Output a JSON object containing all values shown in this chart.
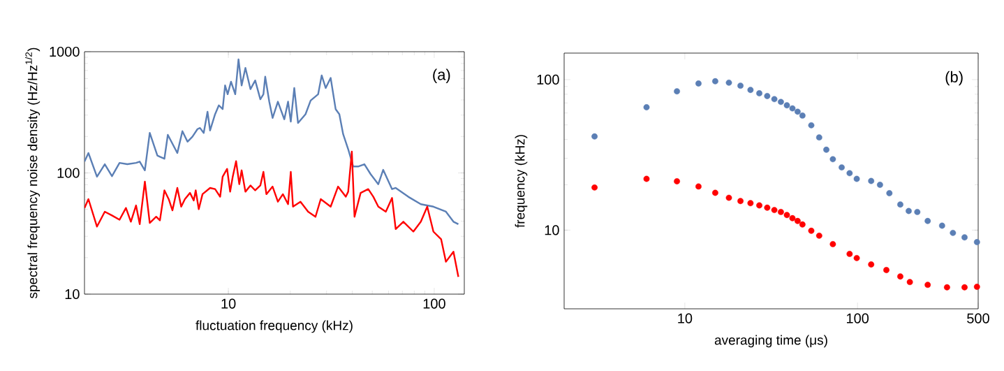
{
  "chart_data": [
    {
      "type": "line",
      "xlabel": "fluctuation frequency (kHz)",
      "ylabel": "spectral frequency noise density (Hz/Hz$^{1/2}$)",
      "annotations": [
        "(a)"
      ],
      "log": "xy",
      "xlim": [
        2,
        140
      ],
      "ylim": [
        10,
        1000
      ],
      "xticks": [
        10,
        100
      ],
      "yticks": [
        10,
        100,
        1000
      ],
      "series": [
        {
          "color": "#5b7fb5",
          "x": [
            2.0,
            2.09,
            2.3,
            2.51,
            2.72,
            2.96,
            3.23,
            3.56,
            3.71,
            3.93,
            4.15,
            4.52,
            4.65,
            4.89,
            5.08,
            5.65,
            5.98,
            6.33,
            6.69,
            7.08,
            7.28,
            7.59,
            7.92,
            8.15,
            8.62,
            8.99,
            9.38,
            9.64,
            9.92,
            10.3,
            10.8,
            11.2,
            11.6,
            12.1,
            12.8,
            13.5,
            14.3,
            14.8,
            15.1,
            15.8,
            16.4,
            17.4,
            18.7,
            19.5,
            20.1,
            20.9,
            21.8,
            23.7,
            25.1,
            27.3,
            28.4,
            29.7,
            31.4,
            33.2,
            34.6,
            36.1,
            38.2,
            40.4,
            42.7,
            45.8,
            49.1,
            53.5,
            56.5,
            62.4,
            65.0,
            74.8,
            86.1,
            99.1,
            114,
            124,
            131
          ],
          "values": [
            124,
            146,
            93,
            118,
            94,
            121,
            118,
            121,
            124,
            105,
            214,
            139,
            136,
            131,
            206,
            146,
            221,
            181,
            199,
            230,
            235,
            214,
            320,
            224,
            305,
            361,
            336,
            527,
            446,
            566,
            446,
            866,
            527,
            735,
            491,
            579,
            405,
            446,
            622,
            387,
            284,
            387,
            277,
            387,
            265,
            502,
            258,
            305,
            396,
            446,
            637,
            502,
            608,
            336,
            305,
            209,
            157,
            113,
            113,
            118,
            97.7,
            80.7,
            106,
            73.5,
            75.2,
            63.6,
            55.2,
            52.7,
            47.9,
            39.6,
            37.8
          ]
        },
        {
          "color": "#ff0000",
          "x": [
            2.0,
            2.09,
            2.3,
            2.51,
            2.72,
            2.96,
            3.18,
            3.36,
            3.56,
            3.71,
            3.93,
            4.15,
            4.46,
            4.65,
            4.89,
            5.13,
            5.35,
            5.65,
            5.9,
            6.15,
            6.51,
            6.79,
            6.94,
            7.18,
            7.49,
            8.15,
            8.62,
            9.12,
            9.38,
            9.86,
            10.2,
            10.5,
            10.9,
            11.3,
            11.6,
            12.1,
            12.8,
            13.5,
            14.3,
            14.8,
            15.3,
            16.4,
            17.4,
            18.4,
            19.5,
            20.1,
            20.6,
            22.4,
            24.4,
            26.5,
            28.1,
            31.4,
            34.1,
            37.2,
            38.2,
            39.8,
            41.0,
            43.9,
            47.8,
            50.6,
            53.5,
            58.2,
            62.4,
            65.0,
            70.8,
            79.2,
            86.1,
            92.5,
            99.1,
            108,
            114,
            124,
            131
          ],
          "values": [
            51.4,
            60.8,
            36.1,
            47.9,
            44.6,
            41.1,
            51.4,
            39.6,
            53.9,
            37.8,
            84.7,
            38.7,
            43.5,
            40.6,
            71.8,
            60.8,
            49.1,
            75.2,
            52.7,
            60.8,
            68.4,
            59.3,
            71.8,
            50.2,
            66.8,
            75.2,
            73.5,
            63.6,
            93.1,
            108,
            70.0,
            93.1,
            125,
            80.7,
            105,
            70.0,
            78.8,
            71.8,
            78.8,
            102,
            66.8,
            77.1,
            57.9,
            66.8,
            55.2,
            102,
            52.7,
            57.9,
            47.9,
            43.5,
            60.8,
            52.7,
            77.1,
            63.6,
            70.0,
            150,
            43.5,
            68.4,
            73.5,
            63.6,
            52.7,
            47.9,
            62.2,
            34.4,
            39.6,
            32.8,
            39.6,
            52.7,
            32.8,
            28.4,
            18.5,
            22.4,
            13.9
          ]
        }
      ]
    },
    {
      "type": "scatter",
      "xlabel": "averaging time (μs)",
      "ylabel": "frequency (kHz)",
      "annotations": [
        "(b)"
      ],
      "log": "xy",
      "marker": "circle",
      "xlim": [
        2,
        500
      ],
      "ylim": [
        3,
        150
      ],
      "xticks": [
        10,
        100,
        500
      ],
      "yticks": [
        10,
        100
      ],
      "series": [
        {
          "color": "#5b7fb5",
          "x": [
            3,
            6,
            9,
            12,
            15,
            18,
            21,
            24,
            27,
            30,
            33,
            36,
            39,
            42,
            45,
            48,
            54,
            60,
            66,
            72,
            81,
            90,
            99,
            120,
            135,
            153,
            177,
            198,
            222,
            255,
            309,
            357,
            417,
            492
          ],
          "values": [
            41.9,
            65.5,
            83.6,
            94.2,
            97.5,
            95.4,
            91.1,
            85.4,
            81.1,
            77.8,
            74.2,
            71.1,
            67.5,
            64.4,
            61.2,
            57.7,
            49.7,
            41.3,
            34.2,
            29.6,
            26.1,
            23.9,
            21.9,
            21.2,
            20.0,
            17.6,
            14.8,
            13.4,
            13.2,
            11.5,
            10.7,
            9.58,
            8.95,
            8.32
          ]
        },
        {
          "color": "#ff0000",
          "x": [
            3,
            6,
            9,
            12,
            15,
            18,
            21,
            24,
            27,
            30,
            33,
            36,
            39,
            42,
            45,
            48,
            54,
            60,
            72,
            90,
            99,
            120,
            147,
            177,
            201,
            255,
            330,
            417,
            492
          ],
          "values": [
            19.2,
            21.9,
            21.1,
            19.5,
            17.7,
            16.4,
            15.6,
            15.1,
            14.6,
            14.1,
            13.6,
            13.2,
            12.6,
            12.0,
            11.5,
            10.9,
            9.9,
            9.18,
            8.07,
            6.95,
            6.52,
            5.91,
            5.43,
            4.92,
            4.52,
            4.33,
            4.17,
            4.17,
            4.2
          ]
        }
      ]
    }
  ]
}
